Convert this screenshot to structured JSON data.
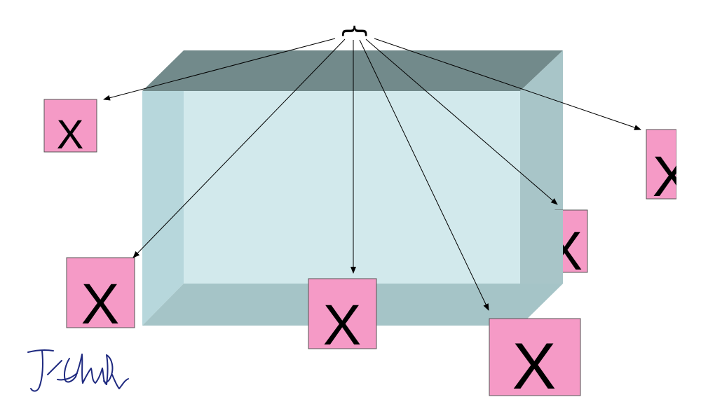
{
  "diagram": {
    "source_symbol": "}",
    "box_label": "X",
    "signature_text": "J.Clark",
    "colors": {
      "background": "#ffffff",
      "box_front": "#d2e9ec",
      "box_inner_left": "#b7d7dc",
      "box_inner_right": "#a8c8cc",
      "box_top": "#728a8b",
      "box_right_side": "#a8c5c8",
      "box_bottom": "#a5c4c7",
      "x_box_fill": "#f59ac6",
      "x_box_stroke": "#555555",
      "arrow": "#000000",
      "signature": "#1f2a80"
    }
  }
}
